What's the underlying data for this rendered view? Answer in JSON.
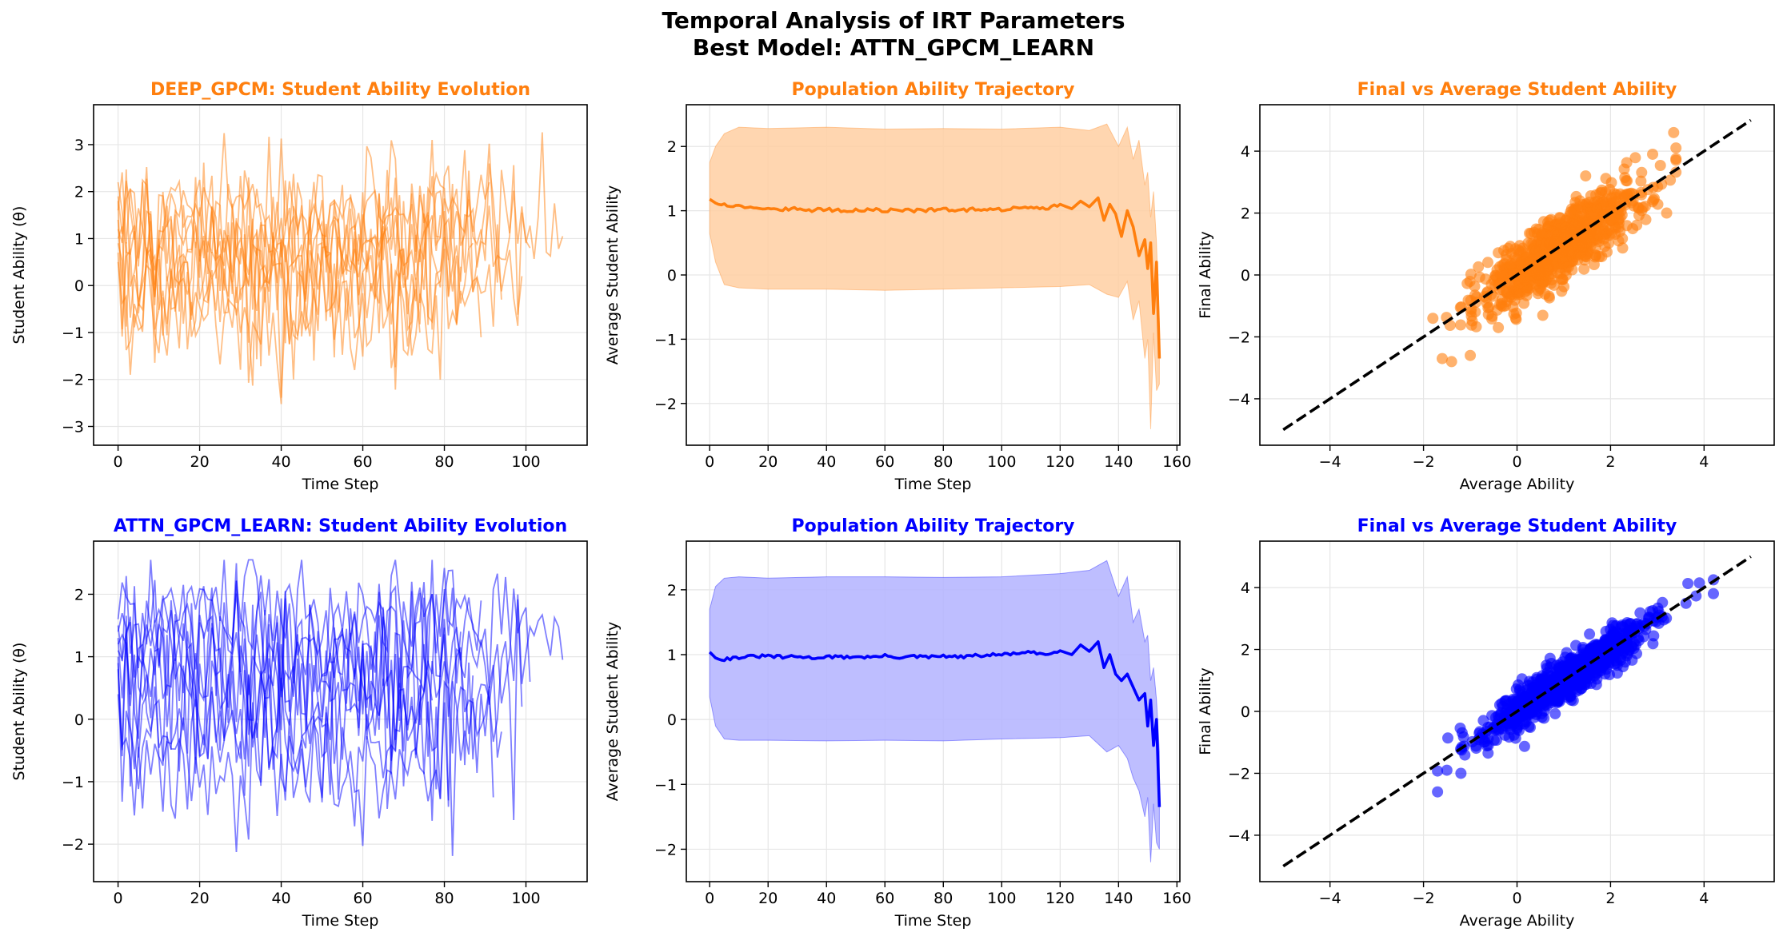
{
  "figure": {
    "title_line1": "Temporal Analysis of IRT Parameters",
    "title_line2": "Best Model: ATTN_GPCM_LEARN"
  },
  "colors": {
    "orange": "#ff7f0e",
    "orange_fill": "#ffcfa2",
    "blue": "#0000ff",
    "blue_fill": "#b3b3ff",
    "diag": "#000000",
    "grid": "#e6e6e6"
  },
  "chart_data": [
    {
      "id": "p1",
      "type": "line",
      "row": 0,
      "col": 0,
      "color": "orange",
      "title": "DEEP_GPCM: Student Ability Evolution",
      "xlabel": "Time Step",
      "ylabel": "Student Ability (θ)",
      "xlim": [
        -6,
        115
      ],
      "ylim": [
        -3.4,
        3.85
      ],
      "xticks": [
        0,
        20,
        40,
        60,
        80,
        100
      ],
      "yticks": [
        -3,
        -2,
        -1,
        0,
        1,
        2,
        3
      ],
      "grid": true,
      "series_mode": "individual_trajectories",
      "trajectories": [
        {
          "start": 1.9,
          "length": 110,
          "mean": 1.3,
          "spread": 0.9,
          "seed": 11,
          "end": 1.05
        },
        {
          "start": 1.4,
          "length": 102,
          "mean": 0.9,
          "spread": 1.0,
          "seed": 12,
          "end": 0.8
        },
        {
          "start": 1.8,
          "length": 100,
          "mean": 0.5,
          "spread": 1.1,
          "seed": 13,
          "end": 0.2
        },
        {
          "start": 0.7,
          "length": 95,
          "mean": 0.2,
          "spread": 1.0,
          "seed": 14,
          "end": -0.3
        },
        {
          "start": 1.2,
          "length": 92,
          "mean": 1.6,
          "spread": 0.8,
          "seed": 15,
          "end": 2.2
        },
        {
          "start": 0.5,
          "length": 90,
          "mean": -0.2,
          "spread": 1.0,
          "seed": 16,
          "end": -1.1
        },
        {
          "start": 2.2,
          "length": 88,
          "mean": 1.0,
          "spread": 1.0,
          "seed": 17,
          "end": 0.9
        },
        {
          "start": 1.0,
          "length": 85,
          "mean": 0.0,
          "spread": 1.1,
          "seed": 18,
          "end": 0.4
        },
        {
          "start": 1.6,
          "length": 80,
          "mean": 1.2,
          "spread": 0.9,
          "seed": 19,
          "end": 1.5
        },
        {
          "start": 0.9,
          "length": 75,
          "mean": -0.6,
          "spread": 1.0,
          "seed": 20,
          "end": -1.0
        }
      ]
    },
    {
      "id": "p2",
      "type": "area",
      "row": 0,
      "col": 1,
      "color": "orange",
      "title": "Population Ability Trajectory",
      "xlabel": "Time Step",
      "ylabel": "Average Student Ability",
      "xlim": [
        -8,
        161
      ],
      "ylim": [
        -2.65,
        2.65
      ],
      "xticks": [
        0,
        20,
        40,
        60,
        80,
        100,
        120,
        140,
        160
      ],
      "yticks": [
        -2,
        -1,
        0,
        1,
        2
      ],
      "grid": true,
      "mean": {
        "x": [
          0,
          2,
          5,
          10,
          15,
          20,
          25,
          30,
          35,
          40,
          45,
          50,
          55,
          60,
          65,
          70,
          75,
          80,
          85,
          90,
          95,
          100,
          105,
          110,
          115,
          120,
          124,
          127,
          130,
          133,
          135,
          137,
          139,
          141,
          143,
          145,
          147,
          149,
          150,
          151,
          152,
          153,
          154
        ],
        "y": [
          1.18,
          1.12,
          1.1,
          1.07,
          1.05,
          1.04,
          1.02,
          1.03,
          1.01,
          1.02,
          1.0,
          1.01,
          1.02,
          1.0,
          1.02,
          1.0,
          1.01,
          1.02,
          1.0,
          1.02,
          1.03,
          1.02,
          1.04,
          1.06,
          1.02,
          1.1,
          1.03,
          1.15,
          1.06,
          1.2,
          0.85,
          1.1,
          0.95,
          0.6,
          1.0,
          0.75,
          0.3,
          0.55,
          0.1,
          0.5,
          -0.6,
          0.2,
          -1.3
        ]
      },
      "upper": {
        "x": [
          0,
          2,
          5,
          10,
          20,
          40,
          60,
          80,
          100,
          120,
          130,
          136,
          140,
          143,
          145,
          147,
          149,
          150,
          151,
          152,
          153,
          154
        ],
        "y": [
          1.75,
          2.0,
          2.2,
          2.3,
          2.28,
          2.3,
          2.27,
          2.28,
          2.27,
          2.3,
          2.25,
          2.35,
          2.0,
          2.3,
          1.8,
          2.1,
          1.4,
          1.6,
          0.9,
          1.3,
          0.5,
          -0.8
        ]
      },
      "lower": {
        "x": [
          0,
          2,
          5,
          10,
          20,
          40,
          60,
          80,
          100,
          120,
          130,
          136,
          140,
          143,
          145,
          147,
          149,
          150,
          151,
          152,
          153,
          154
        ],
        "y": [
          0.65,
          0.2,
          -0.15,
          -0.2,
          -0.22,
          -0.22,
          -0.24,
          -0.22,
          -0.2,
          -0.18,
          -0.15,
          -0.3,
          -0.35,
          -0.1,
          -0.7,
          -0.4,
          -1.3,
          -1.0,
          -2.4,
          -0.9,
          -1.8,
          -1.7
        ]
      }
    },
    {
      "id": "p3",
      "type": "scatter",
      "row": 0,
      "col": 2,
      "color": "orange",
      "title": "Final vs Average Student Ability",
      "xlabel": "Average Ability",
      "ylabel": "Final Ability",
      "xlim": [
        -5.5,
        5.5
      ],
      "ylim": [
        -5.5,
        5.5
      ],
      "xticks": [
        -4,
        -2,
        0,
        2,
        4
      ],
      "yticks": [
        -4,
        -2,
        0,
        2,
        4
      ],
      "grid": true,
      "reference_line": {
        "x": [
          -5,
          5
        ],
        "y": [
          -5,
          5
        ],
        "style": "dashed"
      },
      "points_summary": {
        "count": 800,
        "x_range": [
          -1.8,
          3.4
        ],
        "x_mean": 0.9,
        "x_sd": 0.85,
        "y_equals_x_plus_noise_sd": 0.55,
        "seed": 101
      },
      "outliers": [
        [
          3.35,
          4.6
        ],
        [
          -1.6,
          -2.7
        ],
        [
          -1.4,
          -2.8
        ],
        [
          -1.0,
          -2.6
        ],
        [
          3.2,
          2.0
        ],
        [
          2.9,
          3.9
        ],
        [
          -0.4,
          -1.7
        ],
        [
          -1.8,
          -1.4
        ]
      ]
    },
    {
      "id": "p4",
      "type": "line",
      "row": 1,
      "col": 0,
      "color": "blue",
      "title": "ATTN_GPCM_LEARN: Student Ability Evolution",
      "xlabel": "Time Step",
      "ylabel": "Student Ability (θ)",
      "xlim": [
        -6,
        115
      ],
      "ylim": [
        -2.6,
        2.85
      ],
      "xticks": [
        0,
        20,
        40,
        60,
        80,
        100
      ],
      "yticks": [
        -2,
        -1,
        0,
        1,
        2
      ],
      "grid": true,
      "series_mode": "individual_trajectories",
      "trajectories": [
        {
          "start": 1.6,
          "length": 110,
          "mean": 1.4,
          "spread": 0.7,
          "seed": 31,
          "end": 0.95
        },
        {
          "start": 1.2,
          "length": 102,
          "mean": 0.9,
          "spread": 0.8,
          "seed": 32,
          "end": 0.6
        },
        {
          "start": 1.3,
          "length": 100,
          "mean": 0.5,
          "spread": 0.9,
          "seed": 33,
          "end": 0.2
        },
        {
          "start": 0.8,
          "length": 95,
          "mean": 0.1,
          "spread": 0.8,
          "seed": 34,
          "end": -0.2
        },
        {
          "start": 1.0,
          "length": 93,
          "mean": -0.3,
          "spread": 0.8,
          "seed": 35,
          "end": -1.25
        },
        {
          "start": 1.5,
          "length": 90,
          "mean": 1.7,
          "spread": 0.6,
          "seed": 36,
          "end": 1.9
        },
        {
          "start": 0.4,
          "length": 88,
          "mean": 0.3,
          "spread": 0.9,
          "seed": 37,
          "end": 0.7
        },
        {
          "start": 1.1,
          "length": 85,
          "mean": 1.1,
          "spread": 0.7,
          "seed": 38,
          "end": 1.4
        },
        {
          "start": 0.9,
          "length": 82,
          "mean": -0.8,
          "spread": 0.7,
          "seed": 39,
          "end": -1.3
        },
        {
          "start": 1.4,
          "length": 78,
          "mean": 0.7,
          "spread": 0.9,
          "seed": 40,
          "end": 0.3
        }
      ]
    },
    {
      "id": "p5",
      "type": "area",
      "row": 1,
      "col": 1,
      "color": "blue",
      "title": "Population Ability Trajectory",
      "xlabel": "Time Step",
      "ylabel": "Average Student Ability",
      "xlim": [
        -8,
        161
      ],
      "ylim": [
        -2.5,
        2.75
      ],
      "xticks": [
        0,
        20,
        40,
        60,
        80,
        100,
        120,
        140,
        160
      ],
      "yticks": [
        -2,
        -1,
        0,
        1,
        2
      ],
      "grid": true,
      "mean": {
        "x": [
          0,
          2,
          5,
          10,
          15,
          20,
          25,
          30,
          35,
          40,
          45,
          50,
          55,
          60,
          65,
          70,
          75,
          80,
          85,
          90,
          95,
          100,
          105,
          110,
          115,
          120,
          124,
          127,
          130,
          133,
          135,
          137,
          139,
          141,
          143,
          145,
          147,
          149,
          150,
          151,
          152,
          153,
          154
        ],
        "y": [
          1.04,
          0.95,
          0.93,
          0.96,
          0.97,
          0.98,
          0.96,
          0.97,
          0.95,
          0.97,
          0.96,
          0.97,
          0.96,
          0.98,
          0.96,
          0.97,
          0.96,
          0.98,
          0.96,
          0.98,
          0.99,
          1.0,
          1.02,
          1.03,
          1.0,
          1.06,
          1.0,
          1.15,
          1.05,
          1.2,
          0.8,
          1.0,
          0.7,
          0.6,
          0.7,
          0.5,
          0.3,
          0.4,
          -0.1,
          0.3,
          -0.4,
          0.0,
          -1.35
        ]
      },
      "upper": {
        "x": [
          0,
          2,
          5,
          10,
          20,
          40,
          60,
          80,
          100,
          120,
          130,
          136,
          140,
          143,
          145,
          147,
          149,
          150,
          151,
          152,
          153,
          154
        ],
        "y": [
          1.7,
          2.05,
          2.18,
          2.2,
          2.18,
          2.2,
          2.2,
          2.19,
          2.2,
          2.25,
          2.3,
          2.45,
          1.9,
          2.2,
          1.5,
          1.7,
          1.2,
          1.3,
          0.6,
          0.8,
          0.3,
          -0.5
        ]
      },
      "lower": {
        "x": [
          0,
          2,
          5,
          10,
          20,
          40,
          60,
          80,
          100,
          120,
          130,
          136,
          140,
          143,
          145,
          147,
          149,
          150,
          151,
          152,
          153,
          154
        ],
        "y": [
          0.35,
          -0.1,
          -0.3,
          -0.32,
          -0.32,
          -0.33,
          -0.32,
          -0.33,
          -0.3,
          -0.28,
          -0.25,
          -0.5,
          -0.4,
          -0.6,
          -0.9,
          -1.1,
          -1.5,
          -1.2,
          -2.2,
          -1.3,
          -1.9,
          -2.0
        ]
      }
    },
    {
      "id": "p6",
      "type": "scatter",
      "row": 1,
      "col": 2,
      "color": "blue",
      "title": "Final vs Average Student Ability",
      "xlabel": "Average Ability",
      "ylabel": "Final Ability",
      "xlim": [
        -5.5,
        5.5
      ],
      "ylim": [
        -5.5,
        5.5
      ],
      "xticks": [
        -4,
        -2,
        0,
        2,
        4
      ],
      "yticks": [
        -4,
        -2,
        0,
        2,
        4
      ],
      "grid": true,
      "reference_line": {
        "x": [
          -5,
          5
        ],
        "y": [
          -5,
          5
        ],
        "style": "dashed"
      },
      "points_summary": {
        "count": 800,
        "x_range": [
          -1.7,
          4.2
        ],
        "x_mean": 1.0,
        "x_sd": 0.9,
        "y_equals_x_plus_noise_sd": 0.35,
        "seed": 202
      },
      "outliers": [
        [
          4.2,
          4.25
        ],
        [
          -1.7,
          -2.6
        ],
        [
          -1.5,
          -1.9
        ],
        [
          3.9,
          4.15
        ],
        [
          -1.2,
          -2.0
        ]
      ]
    }
  ]
}
